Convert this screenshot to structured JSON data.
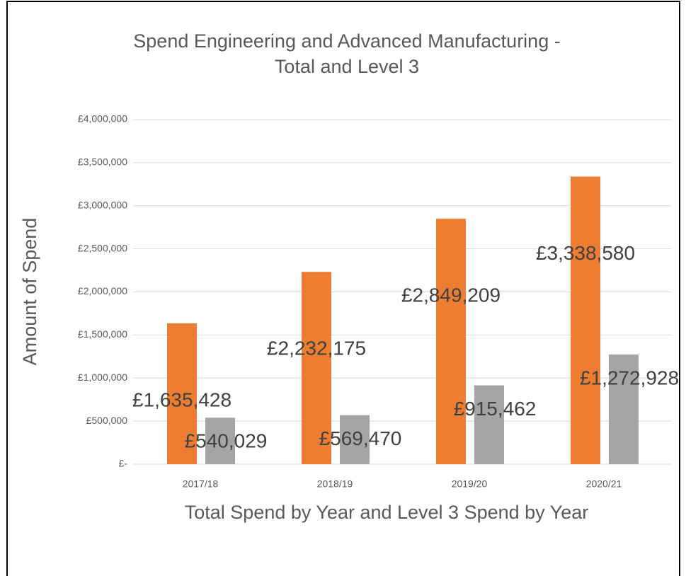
{
  "chart_data": {
    "type": "bar",
    "title": [
      "Spend Engineering and Advanced Manufacturing  -",
      "Total and Level 3"
    ],
    "x_label": "Total Spend by Year and Level 3 Spend by Year",
    "y_label": "Amount of Spend",
    "categories": [
      "2017/18",
      "2018/19",
      "2019/20",
      "2020/21"
    ],
    "series": [
      {
        "color": "#ed7d31",
        "values": [
          1635428,
          2232175,
          2849209,
          3338580
        ],
        "value_labels": [
          "£1,635,428",
          "£2,232,175",
          "£2,849,209",
          "£3,338,580"
        ]
      },
      {
        "color": "#a5a5a5",
        "values": [
          540029,
          569470,
          915462,
          1272928
        ],
        "value_labels": [
          "£540,029",
          "£569,470",
          "£915,462",
          "£1,272,928"
        ]
      }
    ],
    "ylim": [
      0,
      4000000
    ],
    "yticks": [
      {
        "value": 0,
        "label": "£-"
      },
      {
        "value": 500000,
        "label": "£500,000"
      },
      {
        "value": 1000000,
        "label": "£1,000,000"
      },
      {
        "value": 1500000,
        "label": "£1,500,000"
      },
      {
        "value": 2000000,
        "label": "£2,000,000"
      },
      {
        "value": 2500000,
        "label": "£2,500,000"
      },
      {
        "value": 3000000,
        "label": "£3,000,000"
      },
      {
        "value": 3500000,
        "label": "£3,500,000"
      },
      {
        "value": 4000000,
        "label": "£4,000,000"
      }
    ],
    "grid": true
  }
}
